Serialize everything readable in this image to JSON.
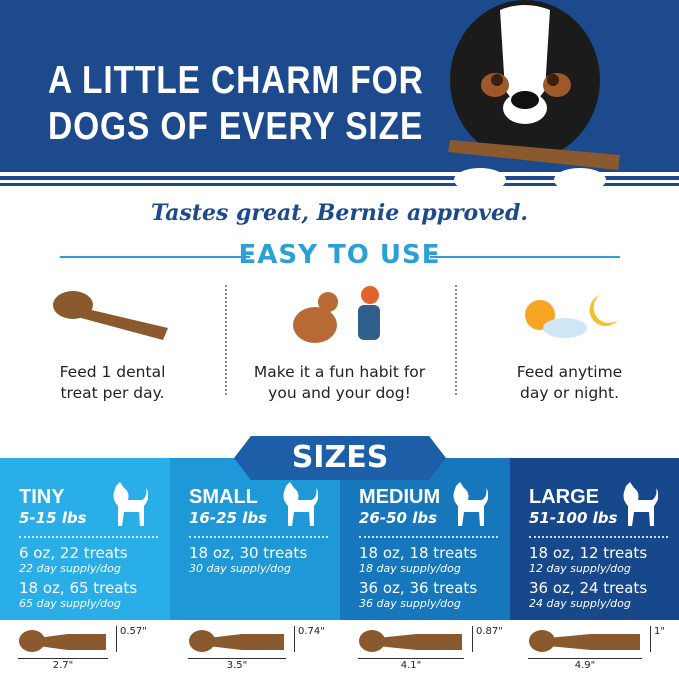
{
  "header": {
    "line1": "A LITTLE CHARM FOR",
    "line2": "DOGS OF EVERY SIZE"
  },
  "tagline": "Tastes great, Bernie approved.",
  "easy_title": "EASY TO USE",
  "features": [
    {
      "icon": "dental-treat-icon",
      "line1": "Feed 1 dental",
      "line2": "treat per day."
    },
    {
      "icon": "dog-high-five-icon",
      "line1": "Make it a fun habit for",
      "line2": "you and your dog!"
    },
    {
      "icon": "sun-moon-icon",
      "line1": "Feed anytime",
      "line2": "day or night."
    }
  ],
  "sizes_title": "SIZES",
  "colors": {
    "header": "#1d4a8c",
    "tiny": "#29aee8",
    "small": "#1e98d6",
    "medium": "#1677bd",
    "large": "#17488b",
    "treat": "#8a5a2e"
  },
  "sizes": [
    {
      "name": "TINY",
      "weight": "5-15 lbs",
      "packs": [
        {
          "pack": "6 oz, 22 treats",
          "supply": "22 day supply/dog"
        },
        {
          "pack": "18 oz, 65 treats",
          "supply": "65 day supply/dog"
        }
      ],
      "height": "0.57\"",
      "length": "2.7\""
    },
    {
      "name": "SMALL",
      "weight": "16-25 lbs",
      "packs": [
        {
          "pack": "18 oz, 30 treats",
          "supply": "30 day supply/dog"
        }
      ],
      "height": "0.74\"",
      "length": "3.5\""
    },
    {
      "name": "MEDIUM",
      "weight": "26-50 lbs",
      "packs": [
        {
          "pack": "18 oz, 18 treats",
          "supply": "18 day supply/dog"
        },
        {
          "pack": "36 oz, 36 treats",
          "supply": "36 day supply/dog"
        }
      ],
      "height": "0.87\"",
      "length": "4.1\""
    },
    {
      "name": "LARGE",
      "weight": "51-100 lbs",
      "packs": [
        {
          "pack": "18 oz, 12 treats",
          "supply": "12 day supply/dog"
        },
        {
          "pack": "36 oz, 24 treats",
          "supply": "24 day supply/dog"
        }
      ],
      "height": "1\"",
      "length": "4.9\""
    }
  ]
}
